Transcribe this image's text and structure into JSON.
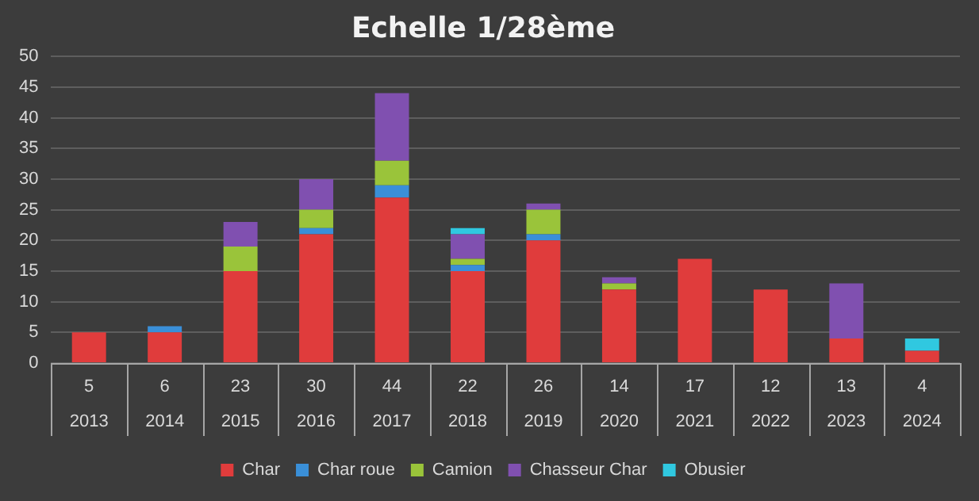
{
  "chart_data": {
    "type": "bar",
    "title": "Echelle 1/28ème",
    "stacked": true,
    "categories": [
      "2013",
      "2014",
      "2015",
      "2016",
      "2017",
      "2018",
      "2019",
      "2020",
      "2021",
      "2022",
      "2023",
      "2024"
    ],
    "totals": [
      "5",
      "6",
      "23",
      "30",
      "44",
      "22",
      "26",
      "14",
      "17",
      "12",
      "13",
      "4"
    ],
    "series": [
      {
        "name": "Char",
        "color": "#e03c3c",
        "values": [
          5,
          5,
          15,
          21,
          27,
          15,
          20,
          12,
          17,
          12,
          4,
          2
        ]
      },
      {
        "name": "Char roue",
        "color": "#3a8fd8",
        "values": [
          null,
          1,
          null,
          1,
          2,
          1,
          1,
          null,
          null,
          null,
          null,
          null
        ]
      },
      {
        "name": "Camion",
        "color": "#9ac43a",
        "values": [
          null,
          null,
          4,
          3,
          4,
          1,
          4,
          1,
          null,
          null,
          null,
          null
        ]
      },
      {
        "name": "Chasseur Char",
        "color": "#8050b0",
        "values": [
          null,
          null,
          4,
          5,
          11,
          4,
          1,
          1,
          null,
          null,
          9,
          null
        ]
      },
      {
        "name": "Obusier",
        "color": "#30c8e0",
        "values": [
          null,
          null,
          null,
          null,
          null,
          1,
          null,
          null,
          null,
          null,
          null,
          2
        ]
      }
    ],
    "ylim": [
      0,
      50
    ],
    "yticks": [
      0,
      5,
      10,
      15,
      20,
      25,
      30,
      35,
      40,
      45,
      50
    ],
    "grid": "y",
    "legend": "bottom"
  }
}
